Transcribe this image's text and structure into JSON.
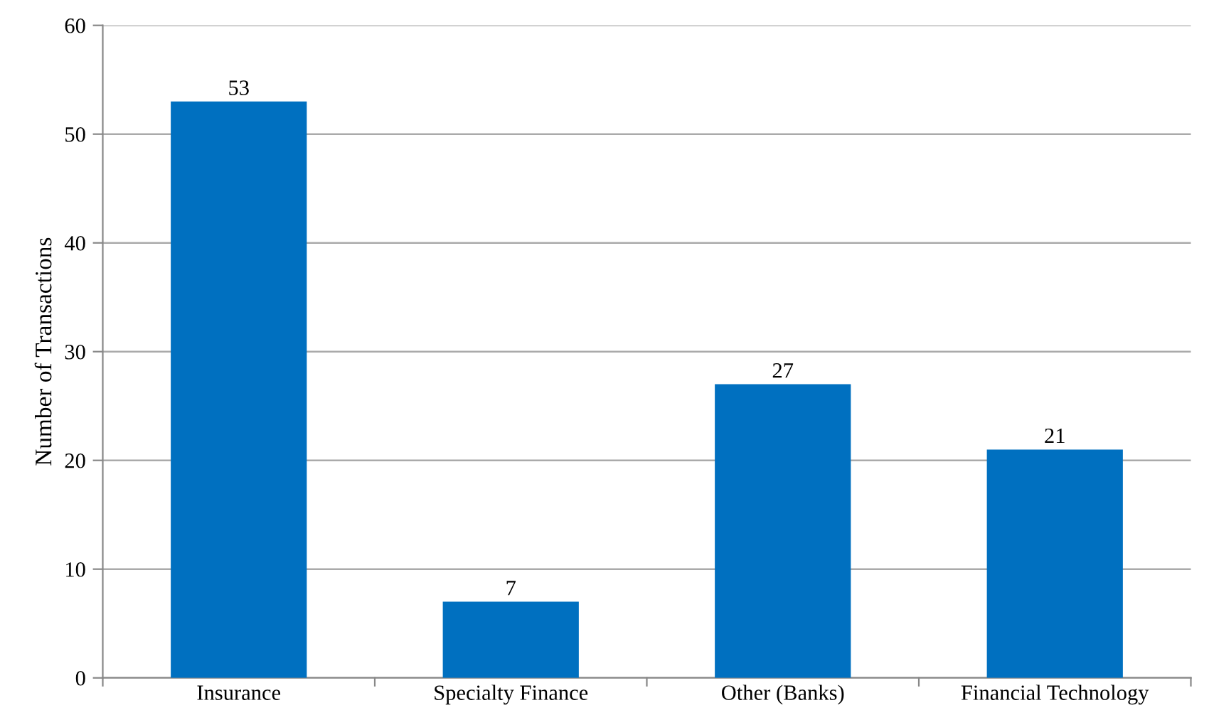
{
  "chart_data": {
    "type": "bar",
    "ylabel": "Number of Transactions",
    "categories": [
      "Insurance",
      "Specialty Finance",
      "Other (Banks)",
      "Financial Technology"
    ],
    "values": [
      53,
      7,
      27,
      21
    ],
    "color": "#0070c0",
    "ylim": [
      0,
      60
    ],
    "yticks": [
      0,
      10,
      20,
      30,
      40,
      50,
      60
    ],
    "grid": "y",
    "data_labels": true
  }
}
